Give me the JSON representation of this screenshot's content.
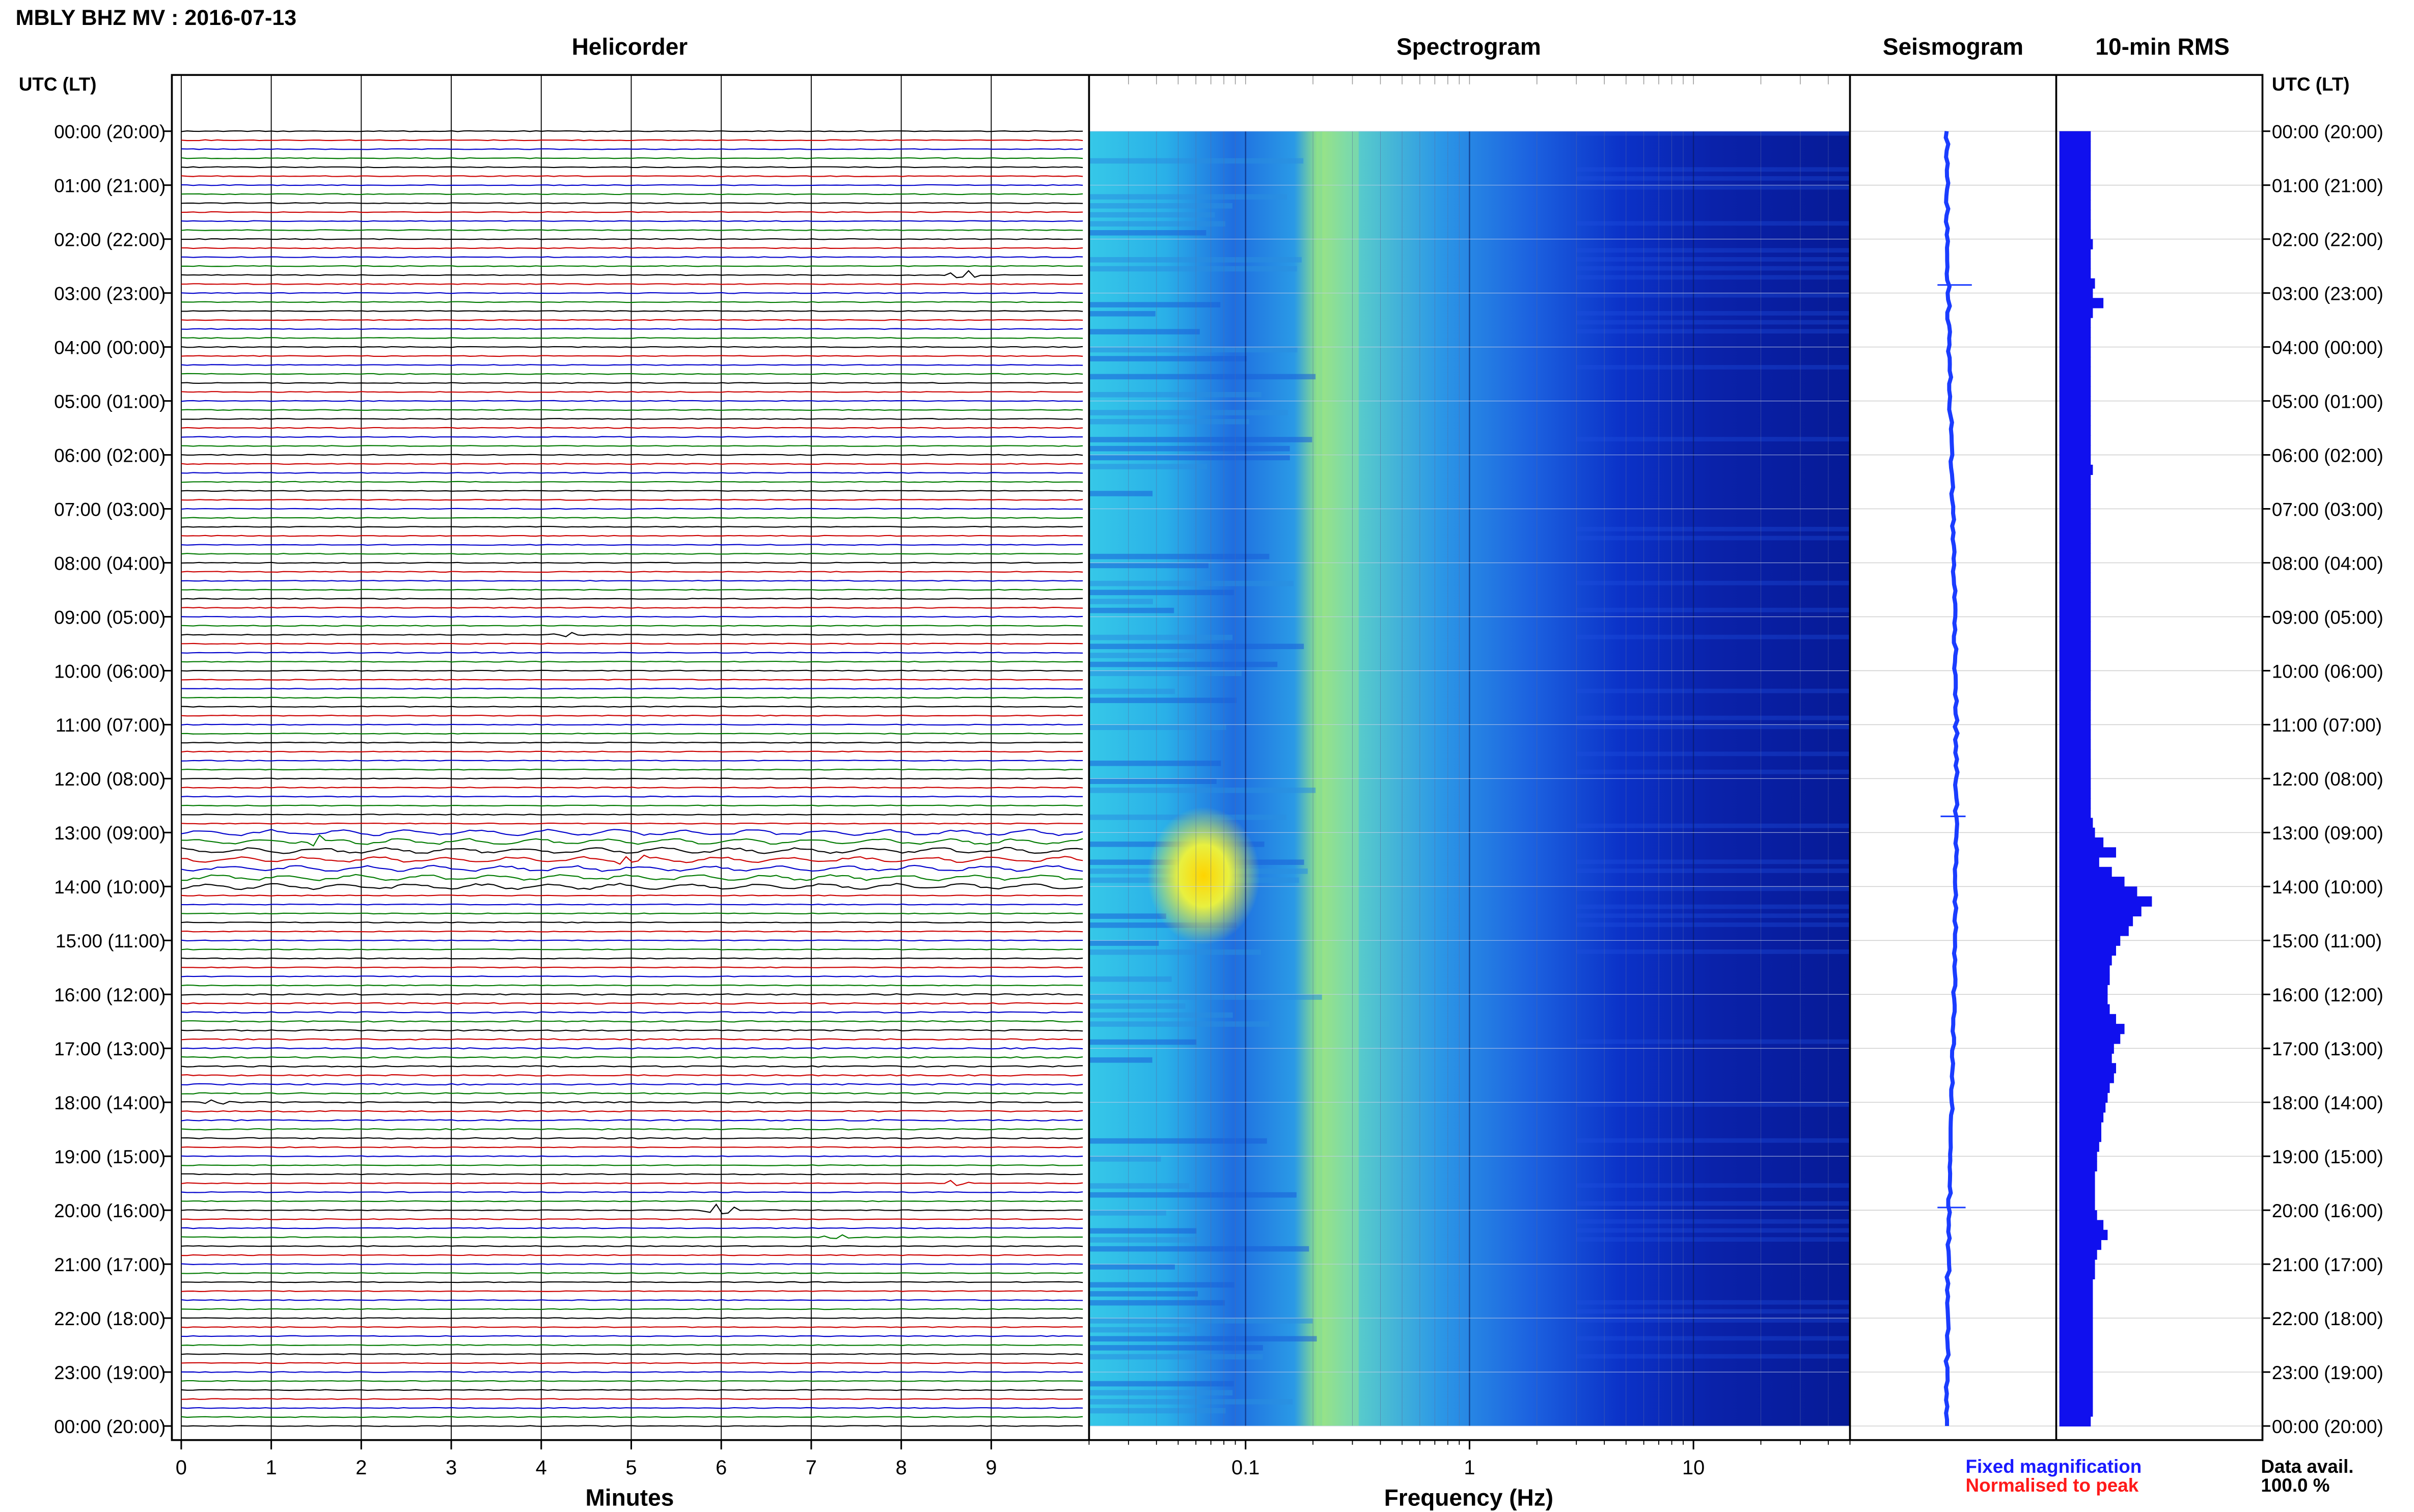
{
  "header": {
    "title": "MBLY BHZ MV : 2016-07-13",
    "utc_label_left": "UTC (LT)",
    "utc_label_right": "UTC (LT)"
  },
  "panels": {
    "helicorder": "Helicorder",
    "spectrogram": "Spectrogram",
    "seismogram": "Seismogram",
    "rms": "10-min RMS"
  },
  "axes": {
    "helicorder_xlabel": "Minutes",
    "spectrogram_xlabel": "Frequency (Hz)"
  },
  "legend": {
    "fixed": "Fixed magnification",
    "normalised": "Normalised to peak",
    "fixed_color": "#1a1aff",
    "normalised_color": "#ff1a1a",
    "data_avail_label": "Data avail.",
    "data_avail_value": "100.0 %"
  },
  "colors": {
    "trace_cycle": [
      "#000000",
      "#cc0000",
      "#0000cc",
      "#007a00"
    ],
    "rms_bar": "#1010ee",
    "seismogram": "#1a3cff"
  },
  "chart_data": {
    "type": "helicorder-spectrogram",
    "time_ticks": [
      "00:00 (20:00)",
      "01:00 (21:00)",
      "02:00 (22:00)",
      "03:00 (23:00)",
      "04:00 (00:00)",
      "05:00 (01:00)",
      "06:00 (02:00)",
      "07:00 (03:00)",
      "08:00 (04:00)",
      "09:00 (05:00)",
      "10:00 (06:00)",
      "11:00 (07:00)",
      "12:00 (08:00)",
      "13:00 (09:00)",
      "14:00 (10:00)",
      "15:00 (11:00)",
      "16:00 (12:00)",
      "17:00 (13:00)",
      "18:00 (14:00)",
      "19:00 (15:00)",
      "20:00 (16:00)",
      "21:00 (17:00)",
      "22:00 (18:00)",
      "23:00 (19:00)",
      "00:00 (20:00)"
    ],
    "helicorder": {
      "minute_ticks": [
        0,
        1,
        2,
        3,
        4,
        5,
        6,
        7,
        8,
        9
      ],
      "xlim": [
        0,
        10
      ],
      "rows_per_hour": 6,
      "events": [
        {
          "row": 16,
          "minute": 8.7,
          "amp": 3.5
        },
        {
          "row": 56,
          "minute": 4.3,
          "amp": 2.0
        },
        {
          "row": 79,
          "minute": 1.5,
          "amp": 4.0
        },
        {
          "row": 81,
          "minute": 5.0,
          "amp": 4.0
        },
        {
          "row": 108,
          "minute": 0.4,
          "amp": 2.0
        },
        {
          "row": 117,
          "minute": 8.6,
          "amp": 2.0
        },
        {
          "row": 120,
          "minute": 6.0,
          "amp": 5.0
        },
        {
          "row": 123,
          "minute": 7.3,
          "amp": 2.0
        }
      ]
    },
    "spectrogram": {
      "xscale": "log",
      "xlim": [
        0.02,
        50
      ],
      "tick_values": [
        0.1,
        1,
        10
      ],
      "tick_labels": [
        "0.1",
        "1",
        "10"
      ]
    },
    "rms_10min": [
      6,
      6,
      6,
      6,
      6,
      6,
      6,
      6,
      6,
      6,
      6,
      7,
      6,
      6,
      6,
      8,
      7,
      12,
      7,
      6,
      6,
      6,
      6,
      6,
      6,
      6,
      6,
      6,
      6,
      6,
      6,
      6,
      6,
      6,
      7,
      6,
      6,
      6,
      6,
      6,
      6,
      6,
      6,
      6,
      6,
      6,
      6,
      6,
      6,
      6,
      6,
      6,
      6,
      6,
      6,
      6,
      6,
      6,
      6,
      6,
      6,
      6,
      6,
      6,
      6,
      6,
      6,
      6,
      6,
      6,
      7,
      8,
      12,
      18,
      10,
      16,
      22,
      28,
      35,
      30,
      26,
      24,
      20,
      18,
      16,
      15,
      15,
      14,
      14,
      15,
      18,
      22,
      20,
      17,
      16,
      18,
      17,
      15,
      14,
      13,
      12,
      11,
      11,
      10,
      9,
      9,
      8,
      8,
      8,
      8,
      9,
      12,
      14,
      11,
      9,
      8,
      8,
      7,
      7,
      7,
      7,
      7,
      7,
      7,
      7,
      7,
      7,
      7,
      7,
      7,
      7,
      6
    ]
  }
}
